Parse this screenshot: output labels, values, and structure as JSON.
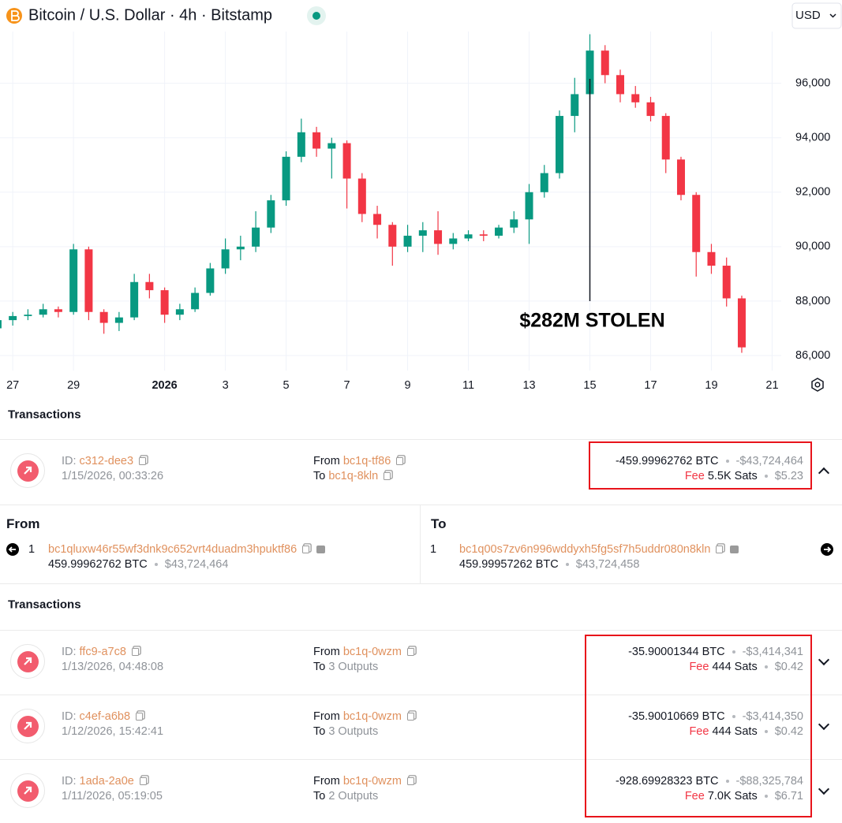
{
  "header": {
    "title": "Bitcoin / U.S. Dollar · 4h · Bitstamp",
    "currency": "USD"
  },
  "chart_data": {
    "type": "candlestick",
    "x": [
      -0.5,
      0,
      0.5,
      1,
      1.5,
      2,
      2.5,
      3,
      3.5,
      4,
      4.5,
      5,
      5.5,
      6,
      6.5,
      7,
      7.5,
      8,
      8.5,
      9,
      9.5,
      10,
      10.5,
      11,
      11.5,
      12,
      12.5,
      13,
      13.5,
      14,
      14.5,
      15,
      15.5,
      16,
      16.5,
      17,
      17.5,
      18,
      18.5,
      19,
      19.5,
      20,
      20.5,
      21,
      21.5,
      22,
      22.5,
      23,
      23.5,
      24
    ],
    "open": [
      87000,
      87300,
      87450,
      87500,
      87700,
      87600,
      89900,
      87600,
      87200,
      87400,
      88700,
      88400,
      87500,
      87700,
      88300,
      89200,
      89900,
      90000,
      90700,
      91700,
      93300,
      94200,
      93600,
      93800,
      92500,
      91200,
      90800,
      90000,
      90400,
      90600,
      90100,
      90300,
      90450,
      90400,
      90700,
      91000,
      92000,
      92700,
      94800,
      95600,
      97200,
      96300,
      95600,
      95300,
      94800,
      93200,
      91900,
      89800,
      89300,
      88100
    ],
    "high": [
      87500,
      87600,
      87700,
      87900,
      87800,
      90100,
      90000,
      87700,
      87600,
      89000,
      89000,
      88500,
      87900,
      88500,
      89400,
      90300,
      90400,
      91300,
      91900,
      93500,
      94700,
      94400,
      94000,
      93900,
      92700,
      91500,
      90900,
      90800,
      90900,
      91300,
      90500,
      90600,
      90600,
      90800,
      91300,
      92300,
      93000,
      95000,
      96200,
      97800,
      97400,
      96500,
      95900,
      95500,
      94900,
      93300,
      92000,
      90100,
      89600,
      88200
    ],
    "low": [
      86800,
      87100,
      87300,
      87400,
      87400,
      87500,
      87300,
      86800,
      86900,
      87300,
      88100,
      87200,
      87300,
      87600,
      88200,
      89000,
      89500,
      89800,
      90500,
      91500,
      93100,
      93300,
      92500,
      91400,
      90900,
      90300,
      89300,
      89800,
      89800,
      89700,
      89900,
      90200,
      90200,
      90300,
      90500,
      90100,
      91800,
      92500,
      94200,
      95400,
      96000,
      95300,
      95100,
      94600,
      92700,
      91700,
      88900,
      89000,
      87800,
      86100
    ],
    "close": [
      87300,
      87450,
      87500,
      87700,
      87600,
      89900,
      87600,
      87200,
      87400,
      88700,
      88400,
      87500,
      87700,
      88300,
      89200,
      89900,
      90000,
      90700,
      91700,
      93300,
      94200,
      93600,
      93800,
      92500,
      91200,
      90800,
      90000,
      90400,
      90600,
      90100,
      90300,
      90450,
      90400,
      90700,
      91000,
      92000,
      92700,
      94800,
      95600,
      97200,
      96300,
      95600,
      95300,
      94800,
      93200,
      91900,
      89800,
      89300,
      88100,
      86300
    ],
    "up_color": "#089981",
    "down_color": "#f23645",
    "xlim": [
      -0.42,
      25.3
    ],
    "ylim": [
      85450,
      97900
    ],
    "xticks": [
      {
        "value": 0,
        "label": "27"
      },
      {
        "value": 2,
        "label": "29"
      },
      {
        "value": 5,
        "label": "2026"
      },
      {
        "value": 7,
        "label": "3"
      },
      {
        "value": 9,
        "label": "5"
      },
      {
        "value": 11,
        "label": "7"
      },
      {
        "value": 13,
        "label": "9"
      },
      {
        "value": 15,
        "label": "11"
      },
      {
        "value": 17,
        "label": "13"
      },
      {
        "value": 19,
        "label": "15"
      },
      {
        "value": 21,
        "label": "17"
      },
      {
        "value": 23,
        "label": "19"
      },
      {
        "value": 25,
        "label": "21"
      }
    ],
    "yticks": [
      {
        "value": 86000,
        "label": "86,000"
      },
      {
        "value": 88000,
        "label": "88,000"
      },
      {
        "value": 90000,
        "label": "90,000"
      },
      {
        "value": 92000,
        "label": "92,000"
      },
      {
        "value": 94000,
        "label": "94,000"
      },
      {
        "value": 96000,
        "label": "96,000"
      }
    ],
    "grid": true,
    "annotation": {
      "text": "$282M STOLEN",
      "x": 19
    }
  },
  "labels": {
    "id": "ID:",
    "from": "From",
    "to": "To",
    "fee": "Fee"
  },
  "transactions_1": {
    "title": "Transactions",
    "items": [
      {
        "id": "c312-dee3",
        "datetime": "1/15/2026, 00:33:26",
        "from": "bc1q-tf86",
        "to": "bc1q-8kln",
        "amount": "-459.99962762 BTC",
        "amount_usd": "-$43,724,464",
        "fee": "5.5K Sats",
        "fee_usd": "$5.23"
      }
    ]
  },
  "detail": {
    "from_heading": "From",
    "to_heading": "To",
    "input": {
      "index": "1",
      "address": "bc1qluxw46r55wf3dnk9c652vrt4duadm3hpuktf86",
      "amount": "459.99962762 BTC",
      "amount_usd": "$43,724,464"
    },
    "output": {
      "index": "1",
      "address": "bc1q00s7zv6n996wddyxh5fg5sf7h5uddr080n8kln",
      "amount": "459.99957262 BTC",
      "amount_usd": "$43,724,458"
    }
  },
  "transactions_2": {
    "title": "Transactions",
    "items": [
      {
        "id": "ffc9-a7c8",
        "datetime": "1/13/2026, 04:48:08",
        "from": "bc1q-0wzm",
        "to": "3 Outputs",
        "amount": "-35.90001344 BTC",
        "amount_usd": "-$3,414,341",
        "fee": "444 Sats",
        "fee_usd": "$0.42"
      },
      {
        "id": "c4ef-a6b8",
        "datetime": "1/12/2026, 15:42:41",
        "from": "bc1q-0wzm",
        "to": "3 Outputs",
        "amount": "-35.90010669 BTC",
        "amount_usd": "-$3,414,350",
        "fee": "444 Sats",
        "fee_usd": "$0.42"
      },
      {
        "id": "1ada-2a0e",
        "datetime": "1/11/2026, 05:19:05",
        "from": "bc1q-0wzm",
        "to": "2 Outputs",
        "amount": "-928.69928323 BTC",
        "amount_usd": "-$88,325,784",
        "fee": "7.0K Sats",
        "fee_usd": "$6.71"
      }
    ]
  }
}
